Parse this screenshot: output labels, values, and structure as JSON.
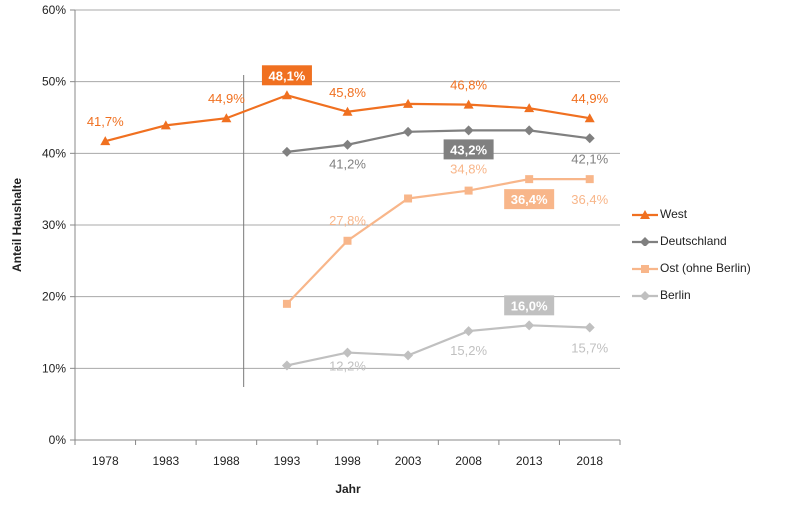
{
  "chart_data": {
    "type": "line",
    "title": "",
    "xlabel": "Jahr",
    "ylabel": "Anteil Haushalte",
    "categories": [
      "1978",
      "1983",
      "1988",
      "1993",
      "1998",
      "2003",
      "2008",
      "2013",
      "2018"
    ],
    "ylim": [
      0,
      60
    ],
    "y_ticks": [
      "0%",
      "10%",
      "20%",
      "30%",
      "40%",
      "50%",
      "60%"
    ],
    "grid": true,
    "legend_position": "right",
    "series": [
      {
        "name": "West",
        "color": "#f07020",
        "marker": "triangle",
        "values": [
          41.7,
          43.9,
          44.9,
          48.1,
          45.8,
          46.9,
          46.8,
          46.3,
          44.9
        ],
        "labels": {
          "0": "41,7%",
          "2": "44,9%",
          "3": "48,1%",
          "4": "45,8%",
          "6": "46,8%",
          "8": "44,9%"
        },
        "boxed": {
          "3": "48,1%"
        }
      },
      {
        "name": "Deutschland",
        "color": "#808080",
        "marker": "diamond",
        "values": [
          null,
          null,
          null,
          40.2,
          41.2,
          43.0,
          43.2,
          43.2,
          42.1
        ],
        "labels": {
          "4": "41,2%",
          "8": "42,1%"
        },
        "boxed": {
          "6": "43,2%"
        }
      },
      {
        "name": "Ost (ohne Berlin)",
        "color": "#f8b68a",
        "marker": "square",
        "values": [
          null,
          null,
          null,
          19.0,
          27.8,
          33.7,
          34.8,
          36.4,
          36.4
        ],
        "labels": {
          "4": "27,8%",
          "6": "34,8%",
          "8": "36,4%"
        },
        "boxed": {
          "7": "36,4%"
        }
      },
      {
        "name": "Berlin",
        "color": "#c0c0c0",
        "marker": "diamond",
        "values": [
          null,
          null,
          null,
          10.4,
          12.2,
          11.8,
          15.2,
          16.0,
          15.7
        ],
        "labels": {
          "4": "12,2%",
          "6": "15,2%",
          "8": "15,7%"
        },
        "boxed": {
          "7": "16,0%"
        }
      }
    ]
  }
}
